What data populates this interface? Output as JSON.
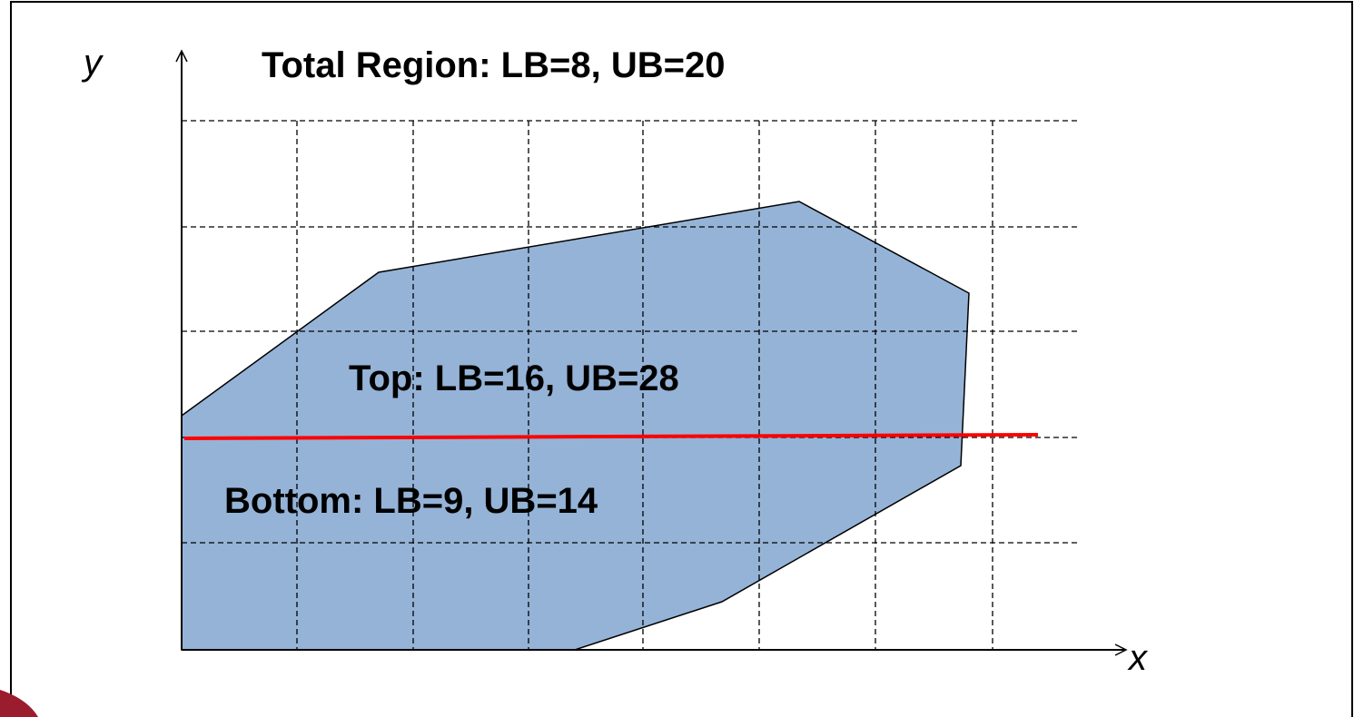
{
  "axes": {
    "y": "y",
    "x": "x"
  },
  "labels": {
    "total": "Total Region: LB=8, UB=20",
    "top": "Top: LB=16, UB=28",
    "bottom": "Bottom: LB=9, UB=14"
  }
}
